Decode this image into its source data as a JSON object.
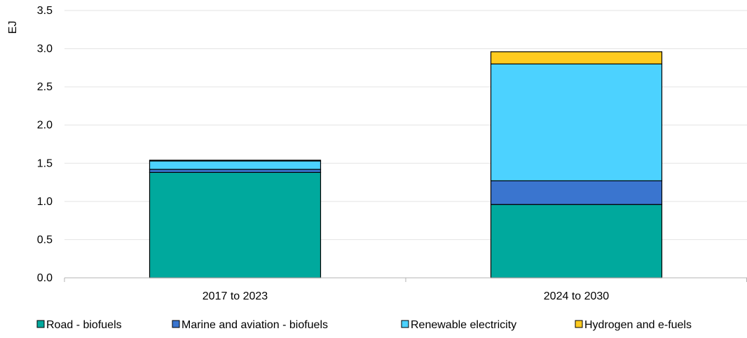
{
  "chart_data": {
    "type": "bar",
    "stacked": true,
    "ylabel": "EJ",
    "xlabel": "",
    "ylim": [
      0,
      3.5
    ],
    "yticks": [
      "0.0",
      "0.5",
      "1.0",
      "1.5",
      "2.0",
      "2.5",
      "3.0",
      "3.5"
    ],
    "grid": true,
    "legend_position": "bottom",
    "categories": [
      "2017 to 2023",
      "2024 to 2030"
    ],
    "series": [
      {
        "name": "Road - biofuels",
        "color": "#00A99D",
        "values": [
          1.38,
          0.96
        ]
      },
      {
        "name": "Marine and aviation - biofuels",
        "color": "#3A75CF",
        "values": [
          0.04,
          0.31
        ]
      },
      {
        "name": "Renewable electricity",
        "color": "#4CD2FF",
        "values": [
          0.11,
          1.53
        ]
      },
      {
        "name": "Hydrogen and e-fuels",
        "color": "#FFCB1F",
        "values": [
          0.01,
          0.16
        ]
      }
    ]
  }
}
